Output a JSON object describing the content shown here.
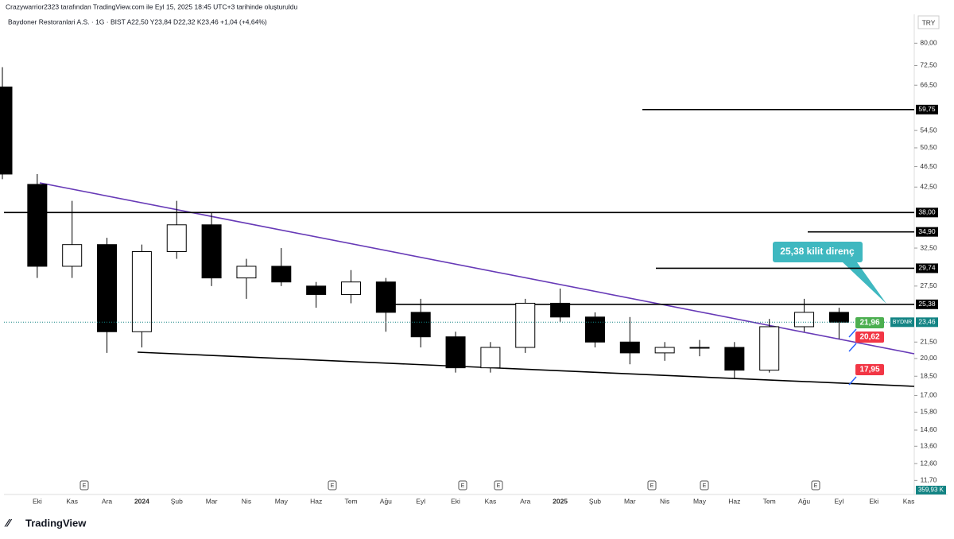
{
  "chart_data": {
    "type": "candlestick",
    "title": "Crazywarrior2323 tarafından TradingView.com ile Eyl 15, 2025 18:45 UTC+3 tarihinde oluşturuldu",
    "subtitle": "Baydoner Restoranlari A.S. · 1G · BIST  A22,50  Y23,84  D22,32  K23,46  +1,04 (+4,64%)",
    "currency": "TRY",
    "categories": [
      null,
      "Eki",
      "Kas",
      "Ara",
      "2024",
      "Şub",
      "Mar",
      "Nis",
      "May",
      "Haz",
      "Tem",
      "Ağu",
      "Eyl",
      "Eki",
      "Kas",
      "Ara",
      "2025",
      "Şub",
      "Mar",
      "Nis",
      "May",
      "Haz",
      "Tem",
      "Ağu",
      "Eyl",
      "Eki",
      "Kas"
    ],
    "open": [
      66,
      43,
      30,
      33,
      22.5,
      32,
      36,
      28.5,
      30,
      27.5,
      26.5,
      28,
      24.5,
      22,
      19.2,
      21,
      25.5,
      24,
      21.5,
      20.5,
      21,
      21,
      19,
      23,
      24.5,
      null,
      null
    ],
    "high": [
      72,
      45,
      40,
      34,
      33,
      40,
      38,
      31,
      32.5,
      28,
      29.5,
      28.5,
      26,
      22.5,
      21.5,
      26,
      27.2,
      24.5,
      24,
      21.5,
      21.7,
      21.5,
      23.8,
      26,
      25,
      null,
      null
    ],
    "low": [
      44,
      28.5,
      28.5,
      20.5,
      21,
      31,
      27.5,
      26,
      27.5,
      25,
      25.5,
      22.5,
      21,
      18.8,
      18.8,
      20.5,
      23.5,
      21,
      19.5,
      19.8,
      20.2,
      18.3,
      18.8,
      22.5,
      21.8,
      null,
      null
    ],
    "close": [
      45,
      30,
      33,
      22.5,
      32,
      36,
      28.5,
      30,
      28,
      26.5,
      28,
      24.5,
      22,
      19.2,
      21,
      25.5,
      24,
      21.5,
      20.5,
      21,
      21,
      19,
      23,
      24.5,
      23.46,
      null,
      null
    ],
    "log_scale": true,
    "ylim": [
      11,
      90.2
    ],
    "yticks": [
      {
        "value": 80,
        "label": "80,00"
      },
      {
        "value": 72.5,
        "label": "72,50"
      },
      {
        "value": 66.5,
        "label": "66,50"
      },
      {
        "value": 54.5,
        "label": "54,50"
      },
      {
        "value": 50.5,
        "label": "50,50"
      },
      {
        "value": 46.5,
        "label": "46,50"
      },
      {
        "value": 42.5,
        "label": "42,50"
      },
      {
        "value": 32.5,
        "label": "32,50"
      },
      {
        "value": 27.5,
        "label": "27,50"
      },
      {
        "value": 21.5,
        "label": "21,50"
      },
      {
        "value": 20,
        "label": "20,00"
      },
      {
        "value": 18.5,
        "label": "18,50"
      },
      {
        "value": 17,
        "label": "17,00"
      },
      {
        "value": 15.8,
        "label": "15,80"
      },
      {
        "value": 14.6,
        "label": "14,60"
      },
      {
        "value": 13.6,
        "label": "13,60"
      },
      {
        "value": 12.6,
        "label": "12,60"
      },
      {
        "value": 11.7,
        "label": "11,70"
      }
    ],
    "hlines": [
      {
        "value": 59.75,
        "label": "59,75"
      },
      {
        "value": 38,
        "label": "38,00"
      },
      {
        "value": 34.9,
        "label": "34,90"
      },
      {
        "value": 29.74,
        "label": "29,74"
      },
      {
        "value": 25.38,
        "label": "25,38"
      }
    ],
    "last_price": {
      "value": 23.46,
      "label": "23,46",
      "symbol": "BYDNR"
    },
    "volume_label": "359,93 K",
    "annotation": "25,38 kilit direnç",
    "price_labels": [
      {
        "label": "21,96",
        "color": "#4caf50"
      },
      {
        "label": "20,62",
        "color": "#f23645"
      },
      {
        "label": "17,95",
        "color": "#f23645"
      }
    ],
    "earnings_markers": [
      "E",
      "E",
      "E",
      "E",
      "E",
      "E",
      "E"
    ],
    "watermark": "TradingView"
  }
}
